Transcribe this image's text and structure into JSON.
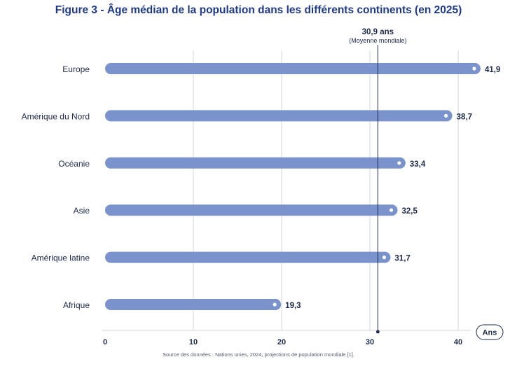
{
  "title": "Figure 3 - Âge médian de la population dans les différents continents (en 2025)",
  "source": "Source des données : Nations unies, 2024, projections de population mondiale [1].",
  "colors": {
    "title": "#1f3a8a",
    "bar": "#7b93cc",
    "text": "#1c2a4f",
    "grid": "#d0d4dc",
    "reference_line": "#1c2a4f"
  },
  "chart_data": {
    "type": "bar",
    "orientation": "horizontal",
    "categories": [
      "Europe",
      "Amérique du Nord",
      "Océanie",
      "Asie",
      "Amérique latine",
      "Afrique"
    ],
    "values": [
      41.9,
      38.7,
      33.4,
      32.5,
      31.7,
      19.3
    ],
    "value_labels": [
      "41,9",
      "38,7",
      "33,4",
      "32,5",
      "31,7",
      "19,3"
    ],
    "xlim": [
      0,
      40
    ],
    "xticks": [
      0,
      10,
      20,
      30,
      40
    ],
    "xtick_labels": [
      "0",
      "10",
      "20",
      "30",
      "40"
    ],
    "xlabel": "Ans",
    "grid": "vertical",
    "reference_line": {
      "value": 30.9,
      "label": "30,9 ans",
      "sublabel": "(Moyenne mondiale)"
    }
  }
}
